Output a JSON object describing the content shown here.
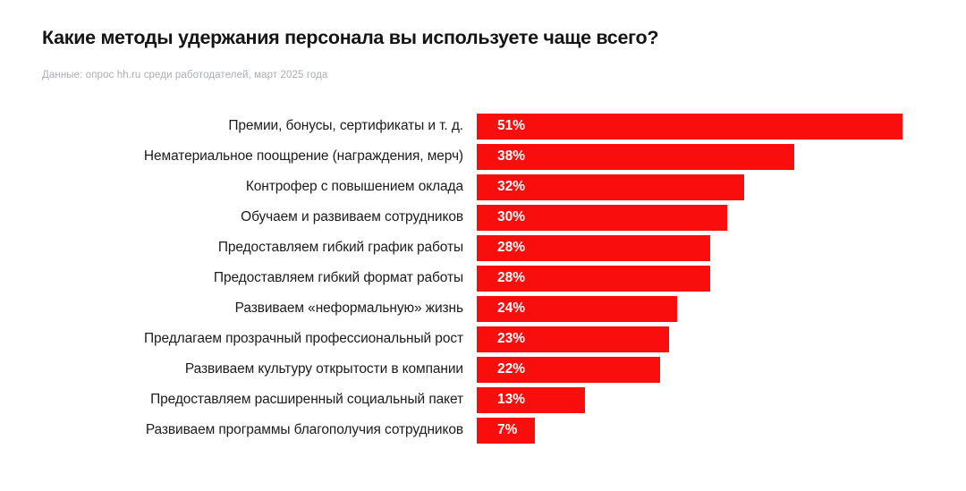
{
  "header": {
    "title": "Какие методы удержания персонала вы используете чаще всего?",
    "subtitle": "Данные: опрос hh.ru среди работодателей, март 2025 года"
  },
  "colors": {
    "bar": "#f90d0d",
    "value_label": "#ffffff",
    "title_text": "#141414",
    "subtitle_text": "#a9aeb9",
    "background": "#ffffff"
  },
  "chart_data": {
    "type": "bar",
    "orientation": "horizontal",
    "title": "Какие методы удержания персонала вы используете чаще всего?",
    "subtitle": "Данные: опрос hh.ru среди работодателей, март 2025 года",
    "categories": [
      "Премии, бонусы, сертификаты и т. д.",
      "Нематериальное поощрение (награждения, мерч)",
      "Контрофер с повышением оклада",
      "Обучаем и развиваем сотрудников",
      "Предоставляем гибкий график работы",
      "Предоставляем гибкий формат работы",
      "Развиваем «неформальную» жизнь",
      "Предлагаем прозрачный профессиональный рост",
      "Развиваем культуру открытости в компании",
      "Предоставляем расширенный социальный пакет",
      "Развиваем программы благополучия сотрудников"
    ],
    "values": [
      51,
      38,
      32,
      30,
      28,
      28,
      24,
      23,
      22,
      13,
      7
    ],
    "value_suffix": "%",
    "value_labels": [
      "51%",
      "38%",
      "32%",
      "30%",
      "28%",
      "28%",
      "24%",
      "23%",
      "22%",
      "13%",
      "7%"
    ],
    "xlabel": "",
    "ylabel": "",
    "xlim": [
      0,
      51
    ],
    "grid": false,
    "legend": false,
    "bar_color": "#f90d0d",
    "value_label_position": "inside-start"
  }
}
